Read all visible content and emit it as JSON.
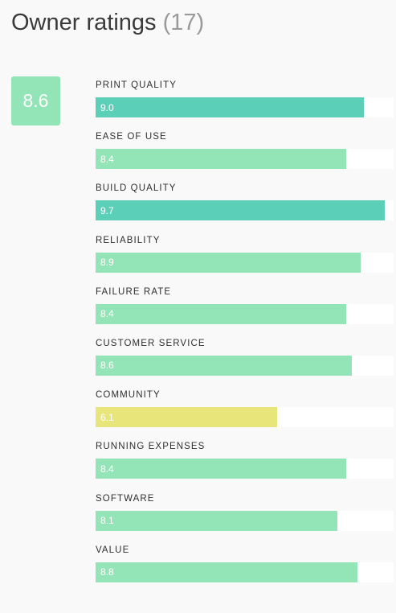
{
  "header": {
    "title": "Owner ratings",
    "count": "(17)"
  },
  "overall": {
    "score": "8.6",
    "color": "#93e4b6"
  },
  "scale_max": 10,
  "colors": {
    "high": "#5ccfb8",
    "good": "#93e4b6",
    "medium": "#e8e57a",
    "track": "#ffffff"
  },
  "ratings": [
    {
      "label": "PRINT QUALITY",
      "value": "9.0",
      "color": "#5ccfb8"
    },
    {
      "label": "EASE OF USE",
      "value": "8.4",
      "color": "#93e4b6"
    },
    {
      "label": "BUILD QUALITY",
      "value": "9.7",
      "color": "#5ccfb8"
    },
    {
      "label": "RELIABILITY",
      "value": "8.9",
      "color": "#93e4b6"
    },
    {
      "label": "FAILURE RATE",
      "value": "8.4",
      "color": "#93e4b6"
    },
    {
      "label": "CUSTOMER SERVICE",
      "value": "8.6",
      "color": "#93e4b6"
    },
    {
      "label": "COMMUNITY",
      "value": "6.1",
      "color": "#e8e57a"
    },
    {
      "label": "RUNNING EXPENSES",
      "value": "8.4",
      "color": "#93e4b6"
    },
    {
      "label": "SOFTWARE",
      "value": "8.1",
      "color": "#93e4b6"
    },
    {
      "label": "VALUE",
      "value": "8.8",
      "color": "#93e4b6"
    }
  ]
}
